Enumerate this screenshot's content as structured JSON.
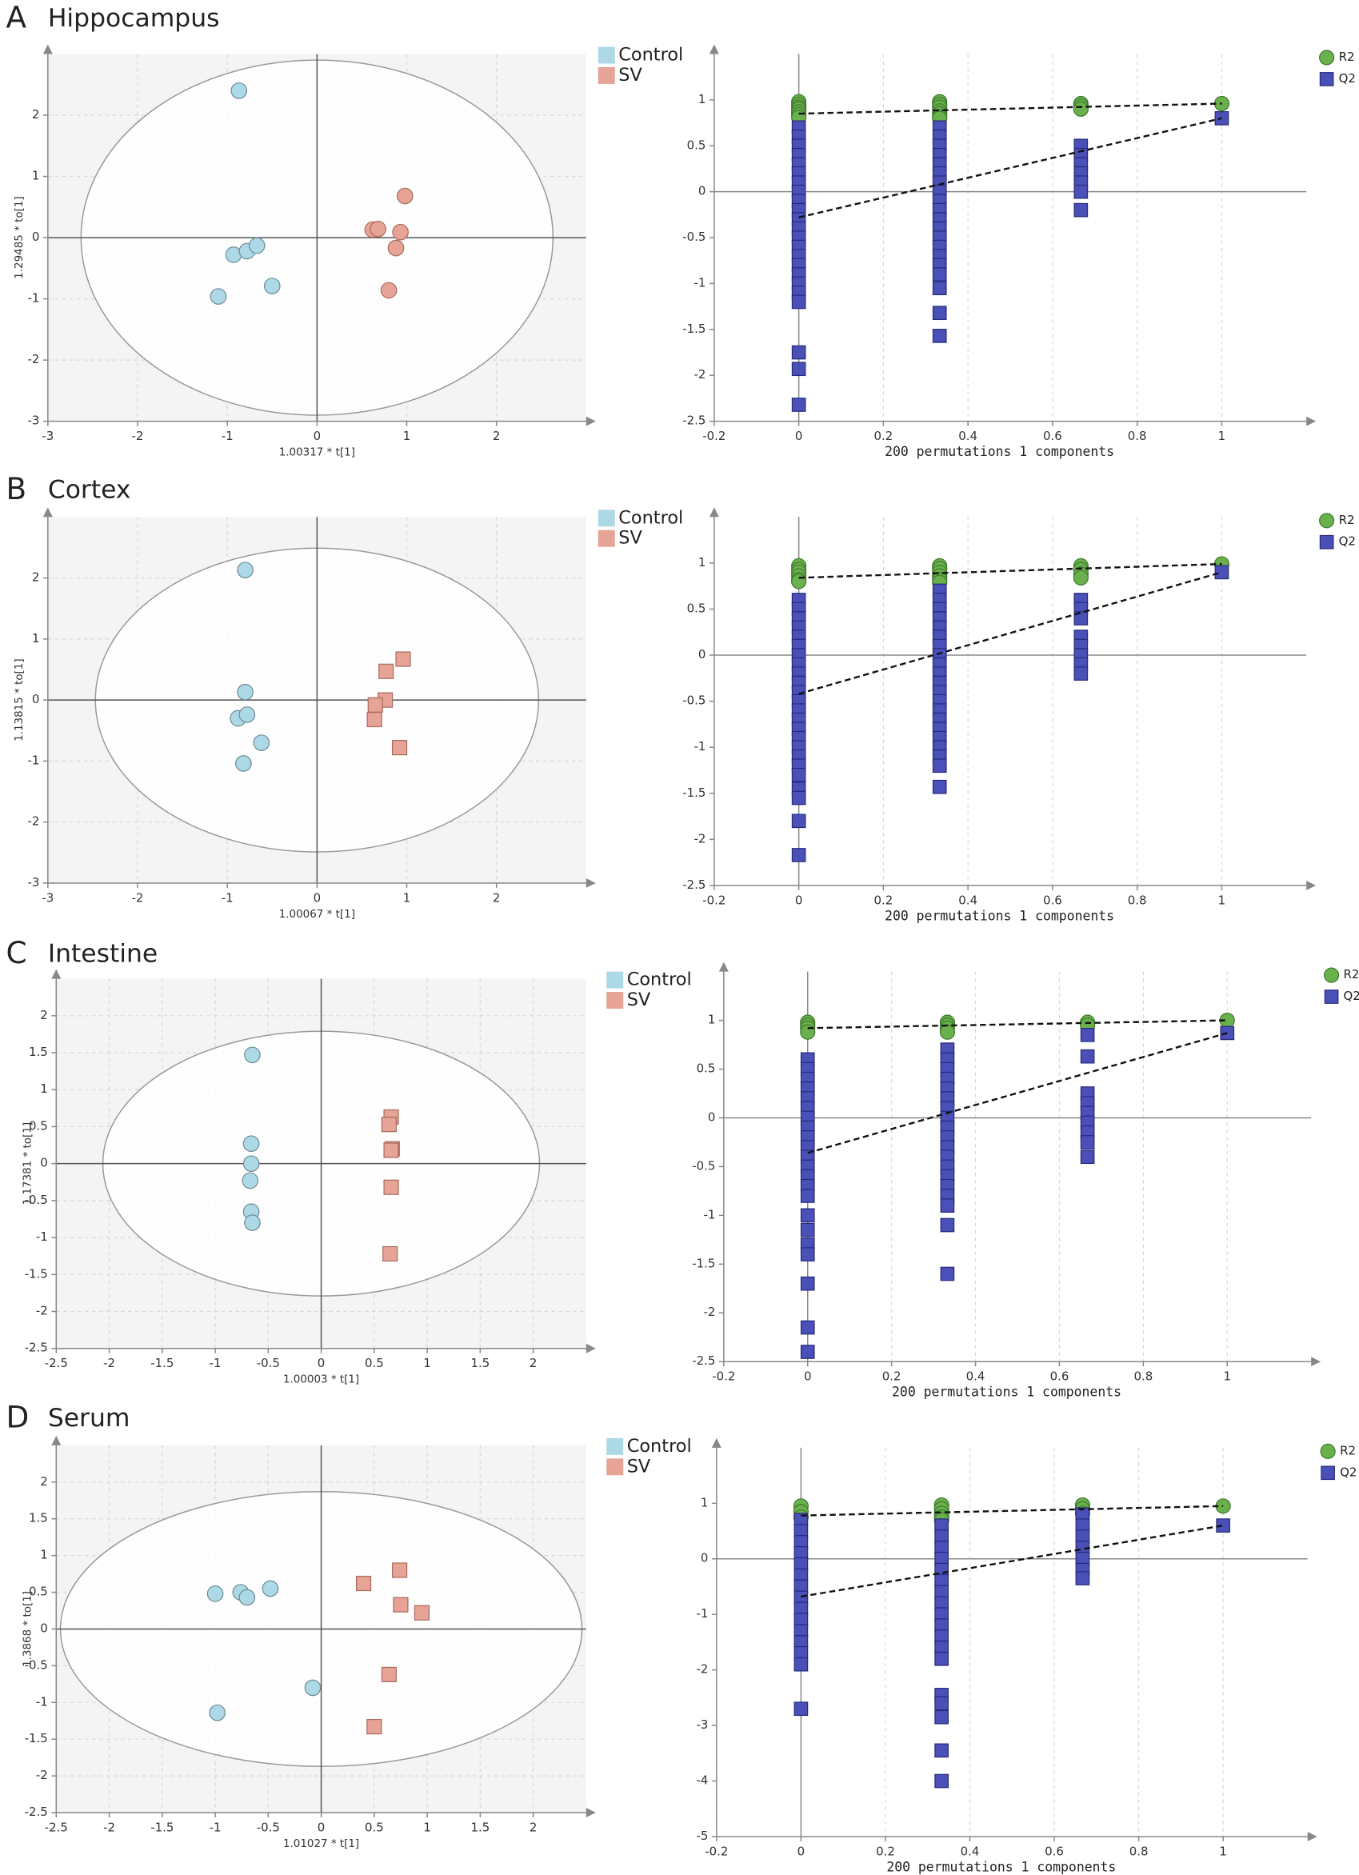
{
  "chart_data": [
    {
      "type": "scatter",
      "panel_label": "A",
      "title": "Hippocampus",
      "xlabel": "1.00317 * t[1]",
      "ylabel": "1.29485 * to[1]",
      "xlim": [
        -3,
        3
      ],
      "ylim": [
        -3,
        3
      ],
      "xticks": [
        -3,
        -2,
        -1,
        0,
        1,
        2
      ],
      "yticks": [
        -3,
        -2,
        -1,
        0,
        1,
        2
      ],
      "grid": "both",
      "ellipse": {
        "x_radius": 2.63,
        "y_radius": 2.9
      },
      "series": [
        {
          "name": "Control",
          "color": "#add8e6",
          "marker": "circle",
          "x": [
            -0.87,
            -0.93,
            -0.78,
            -0.67,
            -0.5,
            -1.1
          ],
          "values": [
            2.4,
            -0.28,
            -0.22,
            -0.13,
            -0.79,
            -0.96
          ]
        },
        {
          "name": "SV",
          "color": "#e6a396",
          "marker": "circle",
          "x": [
            0.62,
            0.68,
            0.98,
            0.93,
            0.88,
            0.8
          ],
          "values": [
            0.13,
            0.14,
            0.68,
            0.09,
            -0.17,
            -0.86
          ]
        }
      ]
    },
    {
      "type": "scatter",
      "xlabel": "200 permutations 1 components",
      "xlim": [
        -0.2,
        1.2
      ],
      "ylim": [
        -2.5,
        1.5
      ],
      "xticks": [
        -0.2,
        0,
        0.2,
        0.4,
        0.6,
        0.8,
        1
      ],
      "yticks": [
        -2.5,
        -2,
        -1.5,
        -1,
        -0.5,
        0,
        0.5,
        1
      ],
      "grid": "x",
      "series": [
        {
          "name": "R2",
          "color": "#6ab04c",
          "marker": "circle",
          "x": [
            0,
            0,
            0,
            0,
            0,
            0,
            0,
            0.333,
            0.333,
            0.333,
            0.333,
            0.333,
            0.333,
            0.333,
            0.667,
            0.667,
            0.667,
            1
          ],
          "values": [
            0.98,
            0.95,
            0.92,
            0.9,
            0.87,
            0.84,
            0.81,
            0.98,
            0.95,
            0.92,
            0.88,
            0.85,
            0.82,
            0.8,
            0.96,
            0.93,
            0.9,
            0.96
          ]
        },
        {
          "name": "Q2",
          "color": "#4a50b8",
          "marker": "square",
          "x": [
            0,
            0,
            0,
            0,
            0,
            0,
            0,
            0,
            0,
            0,
            0,
            0,
            0,
            0,
            0,
            0,
            0,
            0,
            0,
            0,
            0,
            0,
            0,
            0.333,
            0.333,
            0.333,
            0.333,
            0.333,
            0.333,
            0.333,
            0.333,
            0.333,
            0.333,
            0.333,
            0.333,
            0.333,
            0.333,
            0.333,
            0.333,
            0.333,
            0.333,
            0.333,
            0.333,
            0.667,
            0.667,
            0.667,
            0.667,
            0.667,
            0.667,
            0.667,
            1
          ],
          "values": [
            0.7,
            0.6,
            0.5,
            0.4,
            0.3,
            0.2,
            0.1,
            0,
            -0.1,
            -0.2,
            -0.3,
            -0.4,
            -0.5,
            -0.6,
            -0.7,
            -0.8,
            -0.9,
            -1,
            -1.1,
            -1.2,
            -1.75,
            -1.93,
            -2.32,
            0.7,
            0.6,
            0.5,
            0.4,
            0.3,
            0.2,
            0.1,
            0,
            -0.1,
            -0.2,
            -0.3,
            -0.4,
            -0.5,
            -0.6,
            -0.7,
            -0.8,
            -0.9,
            -1.05,
            -1.32,
            -1.57,
            0.5,
            0.4,
            0.3,
            0.2,
            0.1,
            0,
            -0.2,
            0.8
          ]
        }
      ],
      "fit_lines": [
        {
          "x": [
            0,
            1
          ],
          "values": [
            0.85,
            0.96
          ]
        },
        {
          "x": [
            0,
            1
          ],
          "values": [
            -0.28,
            0.8
          ]
        }
      ]
    },
    {
      "type": "scatter",
      "panel_label": "B",
      "title": "Cortex",
      "xlabel": "1.00067 * t[1]",
      "ylabel": "1.13815 * to[1]",
      "xlim": [
        -3,
        3
      ],
      "ylim": [
        -3,
        3
      ],
      "xticks": [
        -3,
        -2,
        -1,
        0,
        1,
        2
      ],
      "yticks": [
        -3,
        -2,
        -1,
        0,
        1,
        2
      ],
      "grid": "both",
      "ellipse": {
        "x_radius": 2.47,
        "y_radius": 2.49
      },
      "series": [
        {
          "name": "Control",
          "color": "#add8e6",
          "marker": "circle",
          "x": [
            -0.8,
            -0.8,
            -0.88,
            -0.78,
            -0.62,
            -0.82
          ],
          "values": [
            2.13,
            0.13,
            -0.3,
            -0.24,
            -0.7,
            -1.04
          ]
        },
        {
          "name": "SV",
          "color": "#e6a396",
          "marker": "square",
          "x": [
            0.77,
            0.96,
            0.76,
            0.65,
            0.64,
            0.92
          ],
          "values": [
            0.47,
            0.67,
            0,
            -0.08,
            -0.32,
            -0.78
          ]
        }
      ]
    },
    {
      "type": "scatter",
      "xlabel": "200 permutations 1 components",
      "xlim": [
        -0.2,
        1.2
      ],
      "ylim": [
        -2.5,
        1.5
      ],
      "xticks": [
        -0.2,
        0,
        0.2,
        0.4,
        0.6,
        0.8,
        1
      ],
      "yticks": [
        -2.5,
        -2,
        -1.5,
        -1,
        -0.5,
        0,
        0.5,
        1
      ],
      "grid": "x",
      "series": [
        {
          "name": "R2",
          "color": "#6ab04c",
          "marker": "circle",
          "x": [
            0,
            0,
            0,
            0,
            0,
            0,
            0.333,
            0.333,
            0.333,
            0.333,
            0.333,
            0.333,
            0.667,
            0.667,
            0.667,
            0.667,
            1
          ],
          "values": [
            0.97,
            0.93,
            0.9,
            0.86,
            0.82,
            0.8,
            0.97,
            0.94,
            0.9,
            0.86,
            0.82,
            0.79,
            0.97,
            0.93,
            0.88,
            0.84,
            0.99
          ]
        },
        {
          "name": "Q2",
          "color": "#4a50b8",
          "marker": "square",
          "x": [
            0,
            0,
            0,
            0,
            0,
            0,
            0,
            0,
            0,
            0,
            0,
            0,
            0,
            0,
            0,
            0,
            0,
            0,
            0,
            0,
            0,
            0,
            0,
            0,
            0.333,
            0.333,
            0.333,
            0.333,
            0.333,
            0.333,
            0.333,
            0.333,
            0.333,
            0.333,
            0.333,
            0.333,
            0.333,
            0.333,
            0.333,
            0.333,
            0.333,
            0.333,
            0.333,
            0.333,
            0.333,
            0.667,
            0.667,
            0.667,
            0.667,
            0.667,
            0.667,
            0.667,
            0.667,
            1
          ],
          "values": [
            0.6,
            0.5,
            0.4,
            0.3,
            0.2,
            0.1,
            0,
            -0.1,
            -0.2,
            -0.3,
            -0.4,
            -0.5,
            -0.6,
            -0.7,
            -0.8,
            -0.9,
            -1,
            -1.1,
            -1.2,
            -1.3,
            -1.45,
            -1.55,
            -1.8,
            -2.17,
            0.7,
            0.6,
            0.5,
            0.4,
            0.3,
            0.2,
            0.1,
            0,
            -0.1,
            -0.2,
            -0.3,
            -0.4,
            -0.5,
            -0.6,
            -0.7,
            -0.8,
            -0.9,
            -1,
            -1.1,
            -1.2,
            -1.43,
            0.6,
            0.5,
            0.4,
            0.2,
            0.1,
            0,
            -0.1,
            -0.2,
            0.9
          ]
        }
      ],
      "fit_lines": [
        {
          "x": [
            0,
            1
          ],
          "values": [
            0.84,
            0.99
          ]
        },
        {
          "x": [
            0,
            1
          ],
          "values": [
            -0.42,
            0.9
          ]
        }
      ]
    },
    {
      "type": "scatter",
      "panel_label": "C",
      "title": "Intestine",
      "xlabel": "1.00003 * t[1]",
      "ylabel": "1.17381 * to[1]",
      "xlim": [
        -2.5,
        2.5
      ],
      "ylim": [
        -2.5,
        2.5
      ],
      "xticks": [
        -2.5,
        -2,
        -1.5,
        -1,
        -0.5,
        0,
        0.5,
        1,
        1.5,
        2
      ],
      "yticks": [
        -2.5,
        -2,
        -1.5,
        -1,
        -0.5,
        0,
        0.5,
        1,
        1.5,
        2
      ],
      "grid": "both",
      "ellipse": {
        "x_radius": 2.06,
        "y_radius": 1.79
      },
      "series": [
        {
          "name": "Control",
          "color": "#add8e6",
          "marker": "circle",
          "x": [
            -0.65,
            -0.66,
            -0.66,
            -0.67,
            -0.66,
            -0.65
          ],
          "values": [
            1.47,
            0.27,
            0,
            -0.23,
            -0.65,
            -0.8
          ]
        },
        {
          "name": "SV",
          "color": "#e6a396",
          "marker": "square",
          "x": [
            0.66,
            0.64,
            0.67,
            0.66,
            0.66,
            0.65
          ],
          "values": [
            0.63,
            0.53,
            0.2,
            0.18,
            -0.32,
            -1.22
          ]
        }
      ]
    },
    {
      "type": "scatter",
      "xlabel": "200 permutations 1 components",
      "xlim": [
        -0.2,
        1.2
      ],
      "ylim": [
        -2.5,
        1.5
      ],
      "xticks": [
        -0.2,
        0,
        0.2,
        0.4,
        0.6,
        0.8,
        1
      ],
      "yticks": [
        -2.5,
        -2,
        -1.5,
        -1,
        -0.5,
        0,
        0.5,
        1
      ],
      "grid": "x",
      "series": [
        {
          "name": "R2",
          "color": "#6ab04c",
          "marker": "circle",
          "x": [
            0,
            0,
            0,
            0,
            0.333,
            0.333,
            0.333,
            0.333,
            0.667,
            0.667,
            1
          ],
          "values": [
            0.98,
            0.95,
            0.92,
            0.88,
            0.98,
            0.95,
            0.92,
            0.88,
            0.98,
            0.95,
            1
          ]
        },
        {
          "name": "Q2",
          "color": "#4a50b8",
          "marker": "square",
          "x": [
            0,
            0,
            0,
            0,
            0,
            0,
            0,
            0,
            0,
            0,
            0,
            0,
            0,
            0,
            0,
            0,
            0,
            0,
            0,
            0,
            0,
            0,
            0.333,
            0.333,
            0.333,
            0.333,
            0.333,
            0.333,
            0.333,
            0.333,
            0.333,
            0.333,
            0.333,
            0.333,
            0.333,
            0.333,
            0.333,
            0.333,
            0.333,
            0.333,
            0.333,
            0.667,
            0.667,
            0.667,
            0.667,
            0.667,
            0.667,
            0.667,
            0.667,
            0.667,
            1
          ],
          "values": [
            0.6,
            0.5,
            0.4,
            0.3,
            0.2,
            0.1,
            0,
            -0.1,
            -0.2,
            -0.3,
            -0.4,
            -0.5,
            -0.6,
            -0.7,
            -0.8,
            -1,
            -1.15,
            -1.3,
            -1.4,
            -1.7,
            -2.15,
            -2.4,
            0.7,
            0.6,
            0.5,
            0.4,
            0.3,
            0.2,
            0.1,
            0,
            -0.1,
            -0.2,
            -0.3,
            -0.4,
            -0.5,
            -0.6,
            -0.7,
            -0.8,
            -0.9,
            -1.1,
            -1.6,
            0.85,
            0.63,
            0.25,
            0.15,
            0.05,
            -0.05,
            -0.15,
            -0.25,
            -0.4,
            0.87
          ]
        }
      ],
      "fit_lines": [
        {
          "x": [
            0,
            1
          ],
          "values": [
            0.92,
            1
          ]
        },
        {
          "x": [
            0,
            1
          ],
          "values": [
            -0.36,
            0.87
          ]
        }
      ]
    },
    {
      "type": "scatter",
      "panel_label": "D",
      "title": "Serum",
      "xlabel": "1.01027 * t[1]",
      "ylabel": "1.3868 * to[1]",
      "xlim": [
        -2.5,
        2.5
      ],
      "ylim": [
        -2.5,
        2.5
      ],
      "xticks": [
        -2.5,
        -2,
        -1.5,
        -1,
        -0.5,
        0,
        0.5,
        1,
        1.5,
        2
      ],
      "yticks": [
        -2.5,
        -2,
        -1.5,
        -1,
        -0.5,
        0,
        0.5,
        1,
        1.5,
        2
      ],
      "grid": "both",
      "ellipse": {
        "x_radius": 2.46,
        "y_radius": 1.87
      },
      "series": [
        {
          "name": "Control",
          "color": "#add8e6",
          "marker": "circle",
          "x": [
            -1.0,
            -0.76,
            -0.7,
            -0.48,
            -0.08,
            -0.98
          ],
          "values": [
            0.48,
            0.5,
            0.43,
            0.55,
            -0.8,
            -1.14
          ]
        },
        {
          "name": "SV",
          "color": "#e6a396",
          "marker": "square",
          "x": [
            0.4,
            0.74,
            0.75,
            0.95,
            0.64,
            0.5
          ],
          "values": [
            0.62,
            0.8,
            0.33,
            0.22,
            -0.62,
            -1.33
          ]
        }
      ]
    },
    {
      "type": "scatter",
      "xlabel": "200 permutations 1 components",
      "xlim": [
        -0.2,
        1.2
      ],
      "ylim": [
        -5,
        2
      ],
      "xticks": [
        -0.2,
        0,
        0.2,
        0.4,
        0.6,
        0.8,
        1
      ],
      "yticks": [
        -5,
        -4,
        -3,
        -2,
        -1,
        0,
        1
      ],
      "grid": "x",
      "series": [
        {
          "name": "R2",
          "color": "#6ab04c",
          "marker": "circle",
          "x": [
            0,
            0,
            0,
            0.333,
            0.333,
            0.333,
            0.333,
            0.333,
            0.667,
            0.667,
            0.667,
            1
          ],
          "values": [
            0.95,
            0.85,
            0.75,
            0.97,
            0.9,
            0.82,
            0.75,
            0.7,
            0.97,
            0.9,
            0.82,
            0.95
          ]
        },
        {
          "name": "Q2",
          "color": "#4a50b8",
          "marker": "square",
          "x": [
            0,
            0,
            0,
            0,
            0,
            0,
            0,
            0,
            0,
            0,
            0,
            0,
            0,
            0,
            0,
            0.333,
            0.333,
            0.333,
            0.333,
            0.333,
            0.333,
            0.333,
            0.333,
            0.333,
            0.333,
            0.333,
            0.333,
            0.333,
            0.333,
            0.333,
            0.333,
            0.333,
            0.333,
            0.667,
            0.667,
            0.667,
            0.667,
            0.667,
            0.667,
            0.667,
            1
          ],
          "values": [
            0.7,
            0.5,
            0.3,
            0.1,
            -0.1,
            -0.3,
            -0.5,
            -0.7,
            -0.9,
            -1.1,
            -1.3,
            -1.5,
            -1.7,
            -1.9,
            -2.7,
            0.6,
            0.4,
            0.2,
            0,
            -0.2,
            -0.4,
            -0.6,
            -0.8,
            -1,
            -1.2,
            -1.4,
            -1.6,
            -1.8,
            -2.45,
            -2.6,
            -2.85,
            -3.45,
            -4,
            0.8,
            0.6,
            0.4,
            0.2,
            0,
            -0.2,
            -0.35,
            0.6
          ]
        }
      ],
      "fit_lines": [
        {
          "x": [
            0,
            1
          ],
          "values": [
            0.78,
            0.95
          ]
        },
        {
          "x": [
            0,
            1
          ],
          "values": [
            -0.68,
            0.6
          ]
        }
      ]
    }
  ]
}
